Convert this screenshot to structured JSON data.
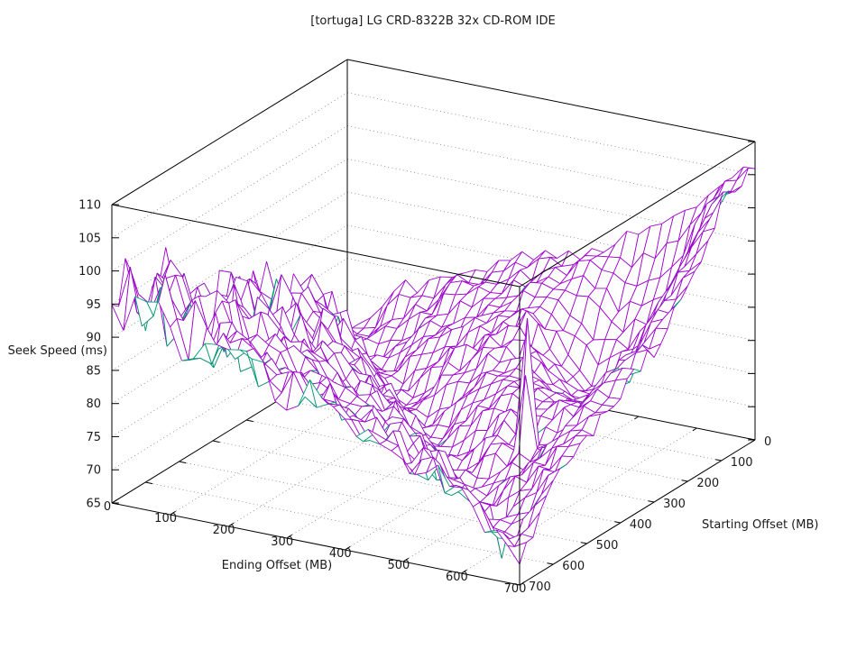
{
  "title": "[tortuga] LG CRD-8322B 32x CD-ROM IDE",
  "chart_data": {
    "type": "surface3d",
    "title": "[tortuga] LG CRD-8322B 32x CD-ROM IDE",
    "xlabel": "Ending Offset (MB)",
    "ylabel": "Starting Offset (MB)",
    "zlabel": "Seek Speed (ms)",
    "xlim": [
      0,
      700
    ],
    "ylim": [
      0,
      700
    ],
    "zlim": [
      65,
      110
    ],
    "xticks": [
      0,
      100,
      200,
      300,
      400,
      500,
      600,
      700
    ],
    "yticks": [
      0,
      100,
      200,
      300,
      400,
      500,
      600,
      700
    ],
    "zticks": [
      65,
      70,
      75,
      80,
      85,
      90,
      95,
      100,
      105,
      110
    ],
    "grid_on": true,
    "legend": "none",
    "surface_color": "#a008cc",
    "underside_color": "#009e73",
    "grid_step_mb": 50,
    "rows_are": "starting_offset_0_to_700",
    "cols_are": "ending_offset_0_to_700",
    "seek_ms_grid": [
      [
        69,
        72.5,
        77.5,
        78.5,
        82,
        82.5,
        85.5,
        87,
        87,
        90,
        92.5,
        95,
        99.5,
        104,
        106.5
      ],
      [
        74.5,
        68,
        73.5,
        76,
        80,
        81.5,
        82.5,
        85,
        86.5,
        88.5,
        84,
        85,
        91,
        101,
        105.5
      ],
      [
        75,
        74,
        69.5,
        72.5,
        77,
        78.5,
        81.5,
        83.5,
        84,
        82,
        79,
        80,
        86,
        98,
        103.5
      ],
      [
        81,
        75.5,
        73.5,
        68.5,
        74,
        76,
        79.5,
        80.5,
        83.5,
        79,
        73,
        76,
        82,
        94,
        97
      ],
      [
        79.5,
        80.5,
        76,
        73.5,
        69,
        72.5,
        77,
        79.5,
        81,
        79.5,
        74,
        74.5,
        79,
        90.5,
        94.5
      ],
      [
        85.5,
        80,
        79.5,
        77.5,
        72.5,
        68,
        73.5,
        76.5,
        79.5,
        79,
        76,
        75,
        77.5,
        87.5,
        91
      ],
      [
        81.5,
        85,
        79.5,
        80,
        76,
        73.5,
        69,
        72.5,
        77,
        79.5,
        78,
        76.5,
        78.5,
        86.5,
        88
      ],
      [
        88.5,
        83,
        84.5,
        79.5,
        80,
        76,
        73.5,
        68,
        73.5,
        77,
        77.5,
        78,
        79.5,
        85,
        86.5
      ],
      [
        84.5,
        87.5,
        83,
        84,
        80.5,
        79.5,
        76,
        73.5,
        69,
        72.5,
        77,
        73.5,
        75,
        83.5,
        84.5
      ],
      [
        92,
        86,
        87,
        83.5,
        84,
        80.5,
        78.5,
        77,
        73.5,
        68,
        73.5,
        74,
        75.5,
        81.5,
        83
      ],
      [
        88,
        90.5,
        86.5,
        87,
        83.5,
        83.5,
        80.5,
        79.5,
        76,
        73.5,
        69,
        72.5,
        74.5,
        79.5,
        81
      ],
      [
        95,
        89,
        90,
        86.5,
        87,
        84,
        82.5,
        81.5,
        78.5,
        77,
        73.5,
        68,
        73.5,
        76.5,
        79.5
      ],
      [
        91,
        93.5,
        89.5,
        90,
        86.5,
        86.5,
        84,
        83.5,
        80.5,
        79.5,
        76,
        73.5,
        69,
        72.5,
        76.5
      ],
      [
        98,
        92,
        93,
        89.5,
        90,
        87,
        85.5,
        85,
        82.5,
        81.5,
        78.5,
        77,
        73.5,
        68,
        72.5
      ],
      [
        94.5,
        99,
        95.5,
        91,
        91.5,
        88.5,
        87,
        86.5,
        84,
        83.5,
        80.5,
        79,
        76.5,
        73.5,
        68.5
      ]
    ],
    "anomalies": [
      {
        "ending_mb": 540,
        "starting_mb": 400,
        "seek_ms": 93
      },
      {
        "ending_mb": 560,
        "starting_mb": 440,
        "seek_ms": 86
      },
      {
        "ending_mb": 600,
        "starting_mb": 580,
        "seek_ms": 63.5
      }
    ]
  }
}
